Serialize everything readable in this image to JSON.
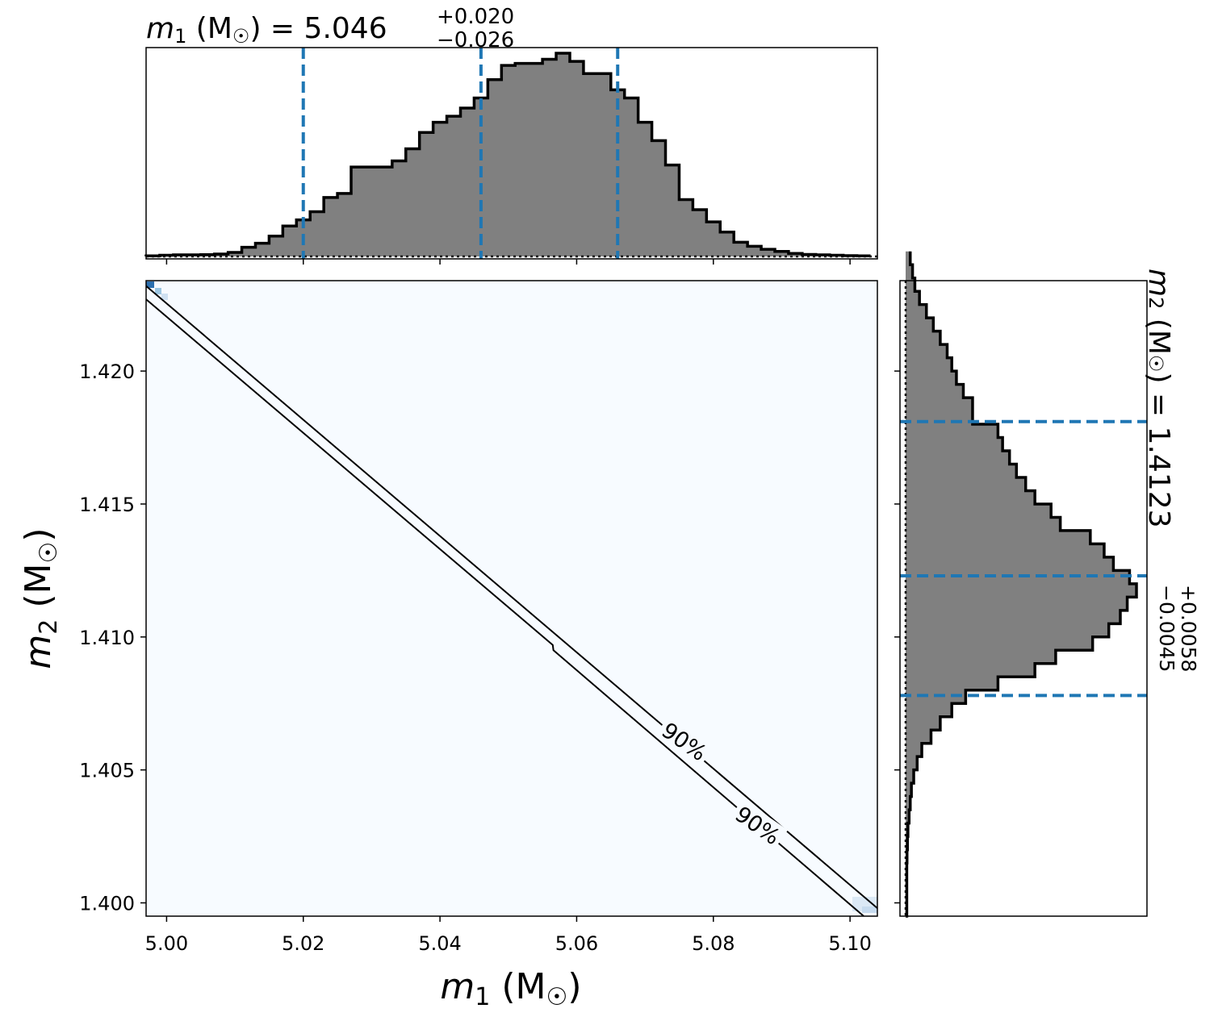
{
  "chart_data": [
    {
      "type": "histogram",
      "panel": "top-marginal",
      "title": {
        "main": "m",
        "sub": "1",
        "unit": " (M",
        "sun": "☉",
        "close": ") = ",
        "value": "5.046",
        "plus": "+0.020",
        "minus": "−0.026"
      },
      "xlim": [
        4.997,
        5.104
      ],
      "tick_values": [
        5.0,
        5.02,
        5.04,
        5.06,
        5.08,
        5.1
      ],
      "bin_edges_start": 4.997,
      "bin_width": 0.002,
      "relative_heights": [
        0.003,
        0.006,
        0.008,
        0.008,
        0.009,
        0.012,
        0.02,
        0.045,
        0.065,
        0.1,
        0.15,
        0.18,
        0.22,
        0.29,
        0.31,
        0.44,
        0.44,
        0.44,
        0.47,
        0.53,
        0.61,
        0.66,
        0.69,
        0.73,
        0.78,
        0.87,
        0.94,
        0.95,
        0.95,
        0.97,
        1.0,
        0.96,
        0.9,
        0.9,
        0.82,
        0.78,
        0.66,
        0.57,
        0.45,
        0.28,
        0.23,
        0.17,
        0.12,
        0.07,
        0.05,
        0.035,
        0.025,
        0.015,
        0.01,
        0.008,
        0.006,
        0.004,
        0.003
      ],
      "quantile_lines": [
        5.02,
        5.046,
        5.066
      ],
      "line_color": "#1f77b4",
      "fill_color": "#808080"
    },
    {
      "type": "heatmap",
      "panel": "joint",
      "xlabel": {
        "main": "m",
        "sub": "1",
        "unit": " (M",
        "sun": "☉",
        "close": ")"
      },
      "ylabel": {
        "main": "m",
        "sub": "2",
        "unit": " (M",
        "sun": "☉",
        "close": ")"
      },
      "xlim": [
        4.997,
        5.104
      ],
      "ylim": [
        1.3995,
        1.4234
      ],
      "xticks": [
        "5.00",
        "5.02",
        "5.04",
        "5.06",
        "5.08",
        "5.10"
      ],
      "yticks": [
        "1.400",
        "1.405",
        "1.410",
        "1.415",
        "1.420"
      ],
      "ytick_values": [
        1.4,
        1.405,
        1.41,
        1.415,
        1.42
      ],
      "contour_label": "90%",
      "contour_upper": [
        [
          4.997,
          1.4232
        ],
        [
          5.104,
          1.3998
        ]
      ],
      "contour_lower": [
        [
          4.997,
          1.4227
        ],
        [
          5.0565,
          1.4097
        ],
        [
          5.0566,
          1.4095
        ],
        [
          5.102,
          1.3995
        ]
      ],
      "background_color": "#f7fbff"
    },
    {
      "type": "histogram",
      "panel": "right-marginal",
      "orientation": "horizontal",
      "title": {
        "main": "m",
        "sub": "2",
        "unit": " (M",
        "sun": "☉",
        "close": ") = ",
        "value": "1.4123",
        "plus": "+0.0058",
        "minus": "−0.0045"
      },
      "ylim": [
        1.3995,
        1.4234
      ],
      "tick_values": [
        1.4,
        1.405,
        1.41,
        1.415,
        1.42
      ],
      "bin_edges_start": 1.3995,
      "bin_width": 0.0005,
      "relative_heights": [
        0.005,
        0.005,
        0.005,
        0.005,
        0.006,
        0.008,
        0.01,
        0.015,
        0.02,
        0.025,
        0.035,
        0.05,
        0.07,
        0.11,
        0.15,
        0.2,
        0.26,
        0.4,
        0.56,
        0.65,
        0.81,
        0.88,
        0.93,
        0.96,
        1.0,
        0.97,
        0.9,
        0.86,
        0.8,
        0.67,
        0.63,
        0.56,
        0.52,
        0.48,
        0.45,
        0.42,
        0.4,
        0.29,
        0.29,
        0.25,
        0.22,
        0.2,
        0.18,
        0.15,
        0.12,
        0.09,
        0.06,
        0.04,
        0.03,
        0.02
      ],
      "quantile_lines": [
        1.4078,
        1.4123,
        1.4181
      ],
      "line_color": "#1f77b4",
      "fill_color": "#808080"
    }
  ]
}
